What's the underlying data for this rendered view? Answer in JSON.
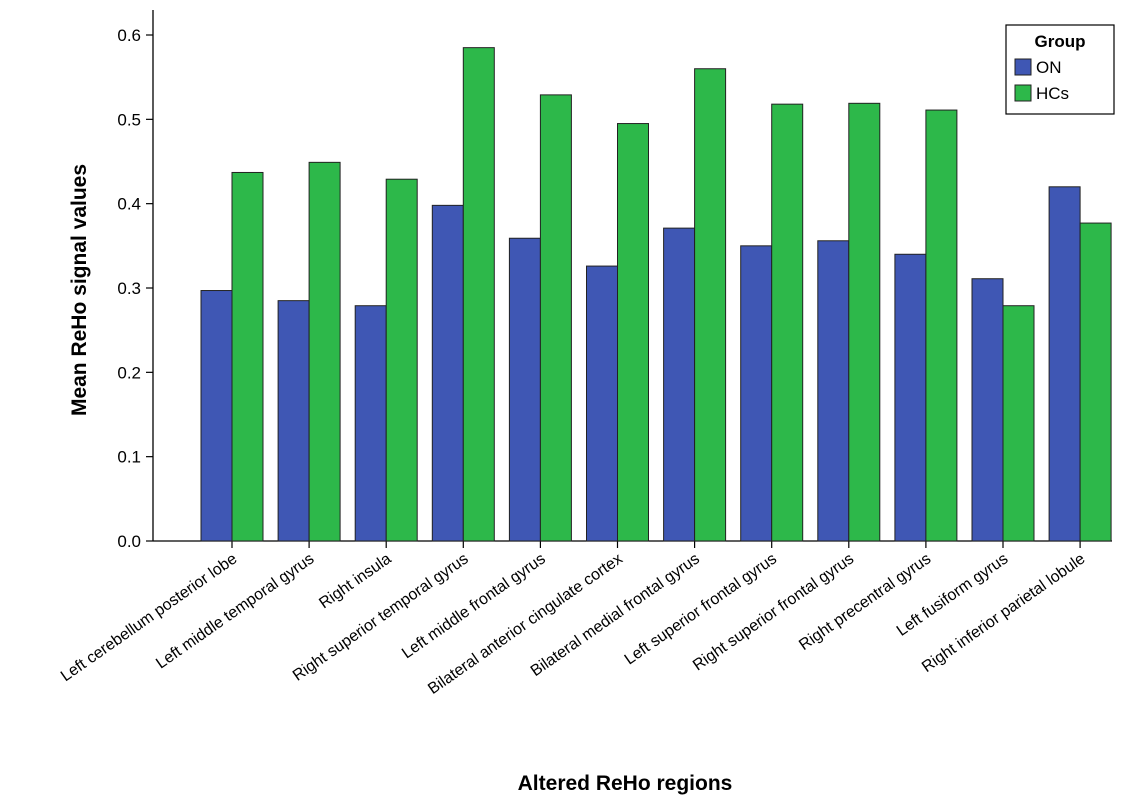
{
  "chart_data": {
    "type": "bar",
    "xlabel": "Altered ReHo regions",
    "ylabel": "Mean ReHo signal values",
    "ylim": [
      0,
      0.6
    ],
    "yticks": [
      "0.0",
      "0.1",
      "0.2",
      "0.3",
      "0.4",
      "0.5",
      "0.6"
    ],
    "grid": false,
    "legend_position": "top-right",
    "legend_title": "Group",
    "categories": [
      "Left cerebellum posterior lobe",
      "Left middle temporal gyrus",
      "Right insula",
      "Right superior temporal gyrus",
      "Left middle frontal gyrus",
      "Bilateral anterior cingulate cortex",
      "Bilateral medial frontal gyrus",
      "Left superior frontal gyrus",
      "Right superior frontal gyrus",
      "Right precentral gyrus",
      "Left fusiform gyrus",
      "Right inferior parietal lobule"
    ],
    "series": [
      {
        "name": "ON",
        "color": "#3f57b4",
        "values": [
          0.297,
          0.285,
          0.279,
          0.398,
          0.359,
          0.326,
          0.371,
          0.35,
          0.356,
          0.34,
          0.311,
          0.42
        ]
      },
      {
        "name": "HCs",
        "color": "#2db84a",
        "values": [
          0.437,
          0.449,
          0.429,
          0.585,
          0.529,
          0.495,
          0.56,
          0.518,
          0.519,
          0.511,
          0.279,
          0.377
        ]
      }
    ]
  }
}
